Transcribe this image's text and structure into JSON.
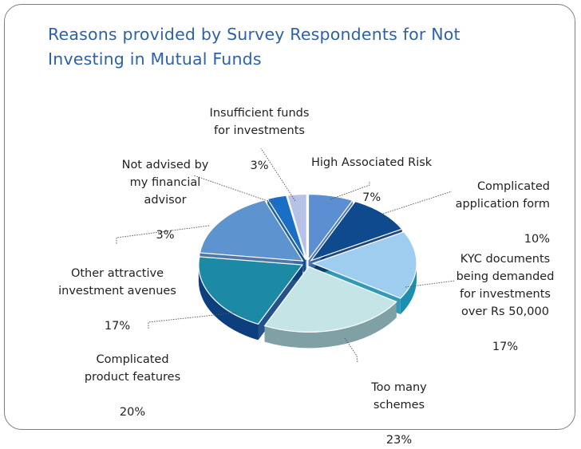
{
  "chart_data": {
    "type": "pie",
    "title": "Reasons provided by Survey Respondents for Not Investing in Mutual Funds",
    "title_lines": [
      "Reasons provided by Survey Respondents for Not",
      "Investing in Mutual Funds"
    ],
    "style": "3d-exploded",
    "slices": [
      {
        "label": "High Associated Risk",
        "label_lines": "High Associated Risk",
        "value": 7,
        "value_label": "7%",
        "color": "#5b8fd2",
        "dark": "#3e6aa8"
      },
      {
        "label": "Complicated application form",
        "label_lines": "Complicated\napplication form",
        "value": 10,
        "value_label": "10%",
        "color": "#0f4a8e",
        "dark": "#0a3566"
      },
      {
        "label": "KYC documents being demanded for investments over Rs 50,000",
        "label_lines": "KYC documents\nbeing demanded\nfor investments\nover Rs 50,000",
        "value": 17,
        "value_label": "17%",
        "color": "#9fcdf0",
        "dark": "#1c8fb0"
      },
      {
        "label": "Too many schemes",
        "label_lines": "Too many\nschemes",
        "value": 23,
        "value_label": "23%",
        "color": "#c5e4e5",
        "dark": "#7fa0a4"
      },
      {
        "label": "Complicated product features",
        "label_lines": "Complicated\nproduct features",
        "value": 20,
        "value_label": "20%",
        "color": "#1c8aa4",
        "dark": "#0d3f7e"
      },
      {
        "label": "Other attractive investment avenues",
        "label_lines": "Other attractive\ninvestment avenues",
        "value": 17,
        "value_label": "17%",
        "color": "#5d93ce",
        "dark": "#3d689e"
      },
      {
        "label": "Not advised by my financial advisor",
        "label_lines": "Not advised by\nmy financial\nadvisor",
        "value": 3,
        "value_label": "3%",
        "color": "#1a6fc4",
        "dark": "#11508f"
      },
      {
        "label": "Insufficient funds for investments",
        "label_lines": "Insufficient funds\nfor investments",
        "value": 3,
        "value_label": "3%",
        "color": "#b5c2e6",
        "dark": "#8793bb"
      }
    ]
  }
}
